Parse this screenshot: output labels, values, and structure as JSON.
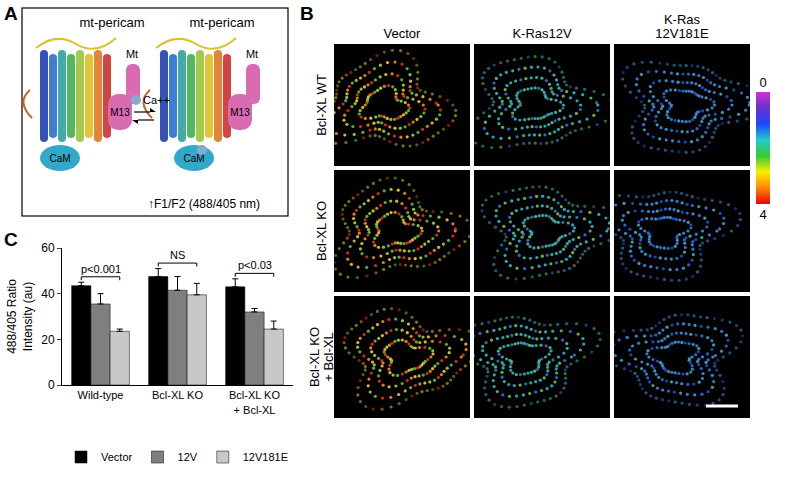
{
  "panel_labels": [
    "A",
    "B",
    "C"
  ],
  "diagram": {
    "title": "mt-pericam",
    "components": [
      "Mt",
      "M13",
      "CaM"
    ],
    "ion": "Ca++",
    "caption": "↑F1/F2 (488/405 nm)"
  },
  "images": {
    "columns": [
      "Vector",
      "K-Ras12V",
      "K-Ras\n12V181E"
    ],
    "rows": [
      "Bcl-XL WT",
      "Bcl-XL KO",
      "Bcl-XL KO\n+ Bcl-XL"
    ],
    "colorbar": {
      "range": [
        0,
        4
      ],
      "ticks": [
        0,
        4
      ]
    }
  },
  "chart_data": {
    "type": "bar",
    "categories": [
      "Wild-type",
      "Bcl-XL KO",
      "Bcl-XL KO\n+ Bcl-XL"
    ],
    "series": [
      {
        "name": "Vector",
        "color": "#000000",
        "values": [
          43.5,
          47.5,
          43
        ],
        "errors": [
          1.5,
          3.5,
          3.5
        ]
      },
      {
        "name": "12V",
        "color": "#7f7f7f",
        "values": [
          35.5,
          41.5,
          32
        ],
        "errors": [
          4.5,
          6,
          1.5
        ]
      },
      {
        "name": "12V181E",
        "color": "#c8c8c8",
        "values": [
          23.5,
          39.5,
          24.5
        ],
        "errors": [
          1,
          5,
          3.5
        ]
      }
    ],
    "y_label": "488/405 Ratio\nIntensity (au)",
    "ylim": [
      0,
      60
    ],
    "yticks": [
      0,
      20,
      40,
      60
    ],
    "grid": false,
    "legend": "bottom",
    "annotations": [
      {
        "category": "Wild-type",
        "text": "p<0.001"
      },
      {
        "category": "Bcl-XL KO",
        "text": "NS"
      },
      {
        "category": "Bcl-XL KO\n+ Bcl-XL",
        "text": "p<0.03"
      }
    ]
  }
}
